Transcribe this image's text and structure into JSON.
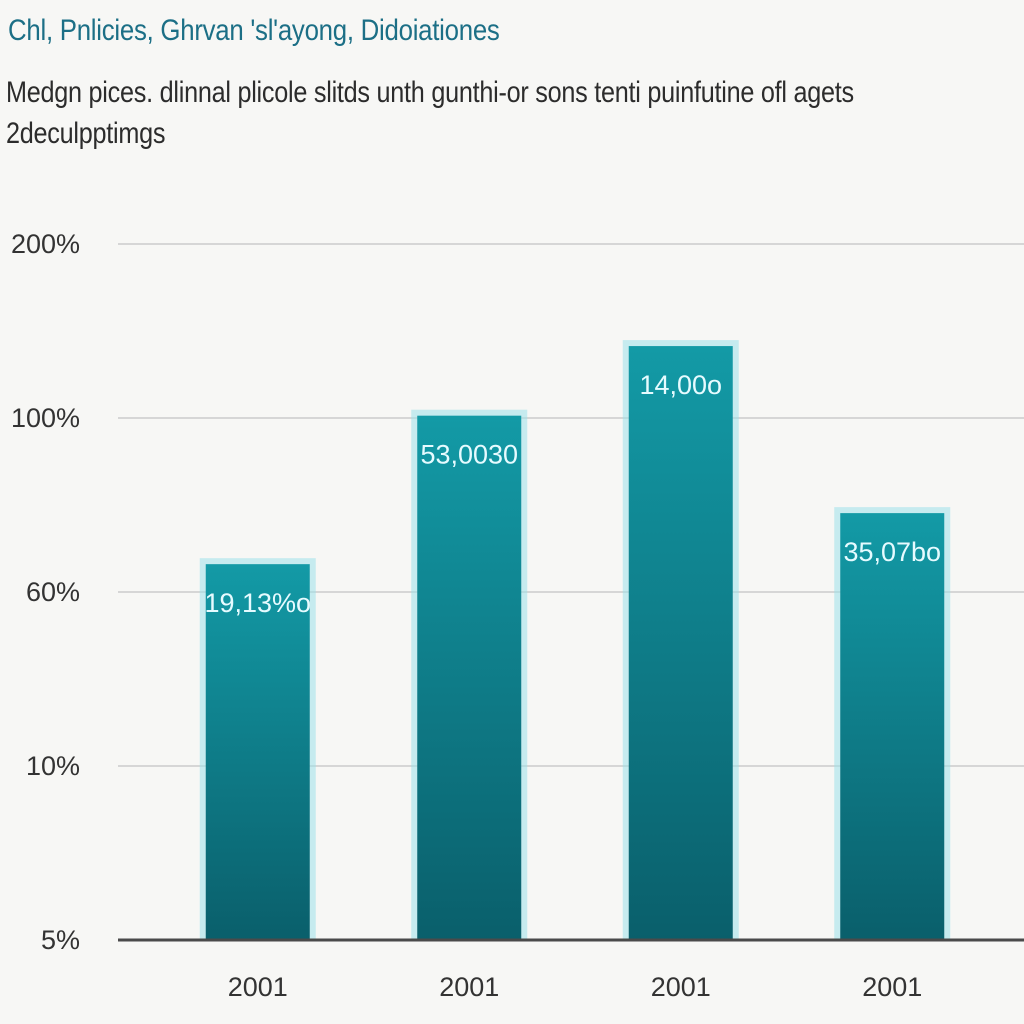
{
  "chart_data": {
    "type": "bar",
    "title": "Chl, Pnlicies, Ghrvan 'sl'ayong, Didoiationes",
    "subtitle": "Medgn pices. dlinnal plicole slitds unth gunthi-or sons tenti puinfutine ofl agets 2deculpptimgs",
    "categories": [
      "2001",
      "2001",
      "2001",
      "2001"
    ],
    "values": [
      81,
      113,
      128,
      92
    ],
    "value_labels": [
      "19,13%o",
      "53,0030",
      "14,00o",
      "35,07bo"
    ],
    "yticks": [
      "5%",
      "10%",
      "60%",
      "100%",
      "200%"
    ],
    "ylim": [
      0,
      150
    ],
    "xlabel": "",
    "ylabel": "",
    "grid": true,
    "colors": {
      "bar_top": "#139aa6",
      "bar_bottom": "#0a5f6b",
      "bar_edge": "#9fe2ea",
      "grid": "#d6d6d6",
      "axis": "#4a4a4a",
      "title": "#1c6f86"
    }
  }
}
